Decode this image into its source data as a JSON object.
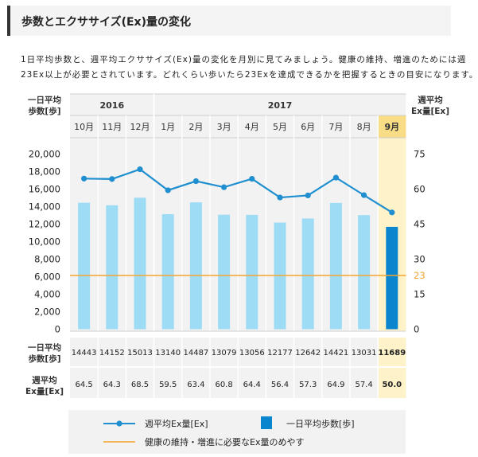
{
  "header": {
    "title": "歩数とエクササイズ(Ex)量の変化"
  },
  "description": {
    "line1": "1日平均歩数と、週平均エクササイズ(Ex)量の変化を月別に見てみましょう。健康の維持、増進のためには週",
    "line2": "23Ex以上が必要とされています。どれくらい歩いたら23Exを達成できるかを把握するときの目安になります。"
  },
  "chart_data": {
    "type": "bar",
    "years": [
      {
        "label": "2016",
        "months": 3
      },
      {
        "label": "2017",
        "months": 9
      }
    ],
    "categories": [
      "10月",
      "11月",
      "12月",
      "1月",
      "2月",
      "3月",
      "4月",
      "5月",
      "6月",
      "7月",
      "8月",
      "9月"
    ],
    "highlight_index": 11,
    "left_axis_label": [
      "一日平均",
      "歩数[歩]"
    ],
    "right_axis_label": [
      "週平均",
      "Ex量[Ex]"
    ],
    "left_ticks": [
      "20,000",
      "18,000",
      "16,000",
      "14,000",
      "12,000",
      "10,000",
      "8,000",
      "6,000",
      "4,000",
      "2,000",
      "0"
    ],
    "right_ticks": [
      "75",
      "60",
      "45",
      "30",
      "23",
      "15",
      "0"
    ],
    "ylim_steps": [
      0,
      20000
    ],
    "ylim_ex": [
      0,
      75
    ],
    "series": [
      {
        "name": "一日平均歩数[歩]",
        "kind": "bar",
        "values": [
          14443,
          14152,
          15013,
          13140,
          14487,
          13079,
          13056,
          12177,
          12642,
          14421,
          13031,
          11689
        ]
      },
      {
        "name": "週平均Ex量[Ex]",
        "kind": "line",
        "values": [
          64.5,
          64.3,
          68.5,
          59.5,
          63.4,
          60.8,
          64.4,
          56.4,
          57.3,
          64.9,
          57.4,
          50.0
        ]
      }
    ],
    "reference_line": {
      "value": 23,
      "label": "健康の維持・増進に必要なEx量のめやす"
    },
    "table": {
      "row1_label": [
        "一日平均",
        "歩数[歩]"
      ],
      "row1_values": [
        "14443",
        "14152",
        "15013",
        "13140",
        "14487",
        "13079",
        "13056",
        "12177",
        "12642",
        "14421",
        "13031",
        "11689"
      ],
      "row2_label": [
        "週平均",
        "Ex量[Ex]"
      ],
      "row2_values": [
        "64.5",
        "64.3",
        "68.5",
        "59.5",
        "63.4",
        "60.8",
        "64.4",
        "56.4",
        "57.3",
        "64.9",
        "57.4",
        "50.0"
      ]
    },
    "legend": {
      "line_label": "週平均Ex量[Ex]",
      "bar_label": "一日平均歩数[歩]",
      "ref_label": "健康の維持・増進に必要なEx量のめやす"
    }
  },
  "colors": {
    "bar": "#9edcf5",
    "bar_highlight": "#0a86cf",
    "line": "#1f8fd0",
    "reference": "#f5a431",
    "highlight_bg": "#fdf2c8",
    "highlight_header": "#f9dd86",
    "panel_bg": "#f2f2f2",
    "grid": "#dddddd"
  }
}
